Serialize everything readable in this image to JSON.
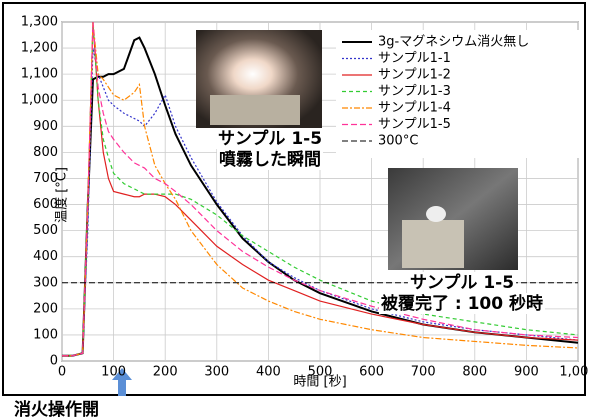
{
  "chart_data": {
    "type": "line",
    "x_label": "時間 [秒]",
    "y_label": "温度 [°C]",
    "x": [
      0,
      20,
      40,
      50,
      60,
      70,
      80,
      90,
      100,
      120,
      140,
      150,
      160,
      180,
      200,
      220,
      250,
      300,
      350,
      400,
      450,
      500,
      600,
      700,
      800,
      900,
      1000
    ],
    "series": [
      {
        "name": "3g-マグネシウム消火無し",
        "color": "#000000",
        "dash": "none",
        "width": 2,
        "values": [
          20,
          20,
          30,
          600,
          1080,
          1090,
          1090,
          1100,
          1100,
          1120,
          1230,
          1240,
          1200,
          1100,
          980,
          870,
          750,
          600,
          470,
          380,
          310,
          260,
          190,
          140,
          110,
          90,
          70
        ]
      },
      {
        "name": "サンプル1-1",
        "color": "#3333cc",
        "dash": "2 2",
        "width": 1.2,
        "values": [
          20,
          20,
          30,
          500,
          1200,
          1100,
          1050,
          1000,
          980,
          950,
          930,
          920,
          900,
          950,
          1020,
          900,
          780,
          610,
          480,
          380,
          320,
          270,
          200,
          150,
          120,
          100,
          80
        ]
      },
      {
        "name": "サンプル1-2",
        "color": "#e02020",
        "dash": "none",
        "width": 1.2,
        "values": [
          20,
          20,
          30,
          600,
          1300,
          1000,
          800,
          700,
          650,
          640,
          630,
          630,
          640,
          640,
          630,
          600,
          540,
          440,
          370,
          310,
          270,
          230,
          180,
          140,
          110,
          90,
          80
        ]
      },
      {
        "name": "サンプル1-3",
        "color": "#33cc33",
        "dash": "4 3",
        "width": 1.2,
        "values": [
          20,
          20,
          30,
          600,
          1300,
          1000,
          850,
          780,
          720,
          680,
          660,
          650,
          640,
          640,
          640,
          640,
          620,
          560,
          480,
          420,
          360,
          310,
          230,
          180,
          150,
          120,
          100
        ]
      },
      {
        "name": "サンプル1-4",
        "color": "#ff8800",
        "dash": "6 2 2 2",
        "width": 1.2,
        "values": [
          20,
          20,
          30,
          600,
          1300,
          1100,
          1080,
          1050,
          1020,
          1000,
          1030,
          1060,
          900,
          750,
          680,
          620,
          500,
          370,
          280,
          230,
          190,
          160,
          120,
          90,
          75,
          60,
          50
        ]
      },
      {
        "name": "サンプル1-5",
        "color": "#ff3399",
        "dash": "6 3",
        "width": 1.2,
        "values": [
          20,
          20,
          30,
          600,
          1300,
          1050,
          950,
          880,
          850,
          800,
          760,
          750,
          740,
          700,
          680,
          650,
          600,
          500,
          420,
          360,
          310,
          270,
          210,
          160,
          120,
          100,
          90
        ]
      },
      {
        "name": "300°C",
        "color": "#000000",
        "dash": "6 3",
        "width": 1,
        "values": [
          300,
          300,
          300,
          300,
          300,
          300,
          300,
          300,
          300,
          300,
          300,
          300,
          300,
          300,
          300,
          300,
          300,
          300,
          300,
          300,
          300,
          300,
          300,
          300,
          300,
          300,
          300
        ]
      }
    ],
    "xlim": [
      0,
      1000
    ],
    "xticks": [
      0,
      100,
      200,
      300,
      400,
      500,
      600,
      700,
      800,
      900,
      {
        "value": 1000,
        "label": "1,000"
      }
    ],
    "ylim": [
      0,
      1300
    ],
    "yticks": [
      0,
      100,
      200,
      300,
      400,
      500,
      600,
      700,
      800,
      900,
      {
        "value": 1000,
        "label": "1,000"
      },
      {
        "value": 1100,
        "label": "1,100"
      },
      {
        "value": 1200,
        "label": "1,200"
      },
      {
        "value": 1300,
        "label": "1,300"
      }
    ],
    "grid": true,
    "legend": "upper right",
    "annotations": [
      {
        "lines": [
          "サンプル 1-5",
          "噴霧した瞬間"
        ]
      },
      {
        "lines": [
          "サンプル 1-5",
          "被覆完了 : 100 秒時"
        ]
      },
      {
        "lines": [
          "消火操作開"
        ]
      }
    ]
  }
}
